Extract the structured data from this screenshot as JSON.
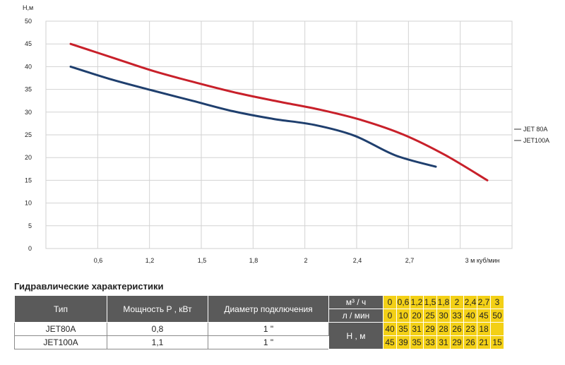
{
  "chart_data": {
    "type": "line",
    "ylabel": "H,м",
    "xlabel": "м куб/мин",
    "ylim": [
      0,
      50
    ],
    "yticks": [
      0,
      5,
      10,
      15,
      20,
      25,
      30,
      35,
      40,
      45,
      50
    ],
    "xticks": [
      {
        "v": 0.6,
        "label": "0,6"
      },
      {
        "v": 1.2,
        "label": "1,2"
      },
      {
        "v": 1.5,
        "label": "1,5"
      },
      {
        "v": 1.8,
        "label": "1,8"
      },
      {
        "v": 2,
        "label": "2"
      },
      {
        "v": 2.4,
        "label": "2,4"
      },
      {
        "v": 2.7,
        "label": "2,7"
      },
      {
        "v": 3,
        "label": "3 м куб/мин"
      }
    ],
    "grid": true,
    "legend_placement": "right",
    "series": [
      {
        "name": "JET 80A",
        "color": "#1f3f6e",
        "x": [
          0.3,
          0.6,
          0.9,
          1.2,
          1.5,
          1.8,
          2.1,
          2.4,
          2.7,
          2.85
        ],
        "y": [
          40,
          37.2,
          34.8,
          32.5,
          30.2,
          28.5,
          27.2,
          24.8,
          20.5,
          18
        ]
      },
      {
        "name": "JET100A",
        "color": "#c8202a",
        "x": [
          0.3,
          0.6,
          0.9,
          1.2,
          1.5,
          1.8,
          2.1,
          2.4,
          2.7,
          3.0,
          3.15
        ],
        "y": [
          45,
          42,
          39,
          36.5,
          34.2,
          32.3,
          30.5,
          28.2,
          25,
          20.5,
          15
        ]
      }
    ]
  },
  "table": {
    "title": "Гидравлические характеристики",
    "headers": {
      "type": "Тип",
      "power": "Мощность P , кВт",
      "diameter": "Диаметр подключения",
      "flow_m3": "м³ / ч",
      "flow_lmin": "л / мин",
      "head": "Н , м"
    },
    "flow_m3_values": [
      "0",
      "0,6",
      "1,2",
      "1,5",
      "1,8",
      "2",
      "2,4",
      "2,7",
      "3"
    ],
    "flow_lmin_values": [
      "0",
      "10",
      "20",
      "25",
      "30",
      "33",
      "40",
      "45",
      "50"
    ],
    "rows": [
      {
        "type": "JET80A",
        "power": "0,8",
        "diameter": "1 \"",
        "head": [
          "40",
          "35",
          "31",
          "29",
          "28",
          "26",
          "23",
          "18",
          ""
        ]
      },
      {
        "type": "JET100A",
        "power": "1,1",
        "diameter": "1 \"",
        "head": [
          "45",
          "39",
          "35",
          "33",
          "31",
          "29",
          "26",
          "21",
          "15"
        ]
      }
    ]
  }
}
